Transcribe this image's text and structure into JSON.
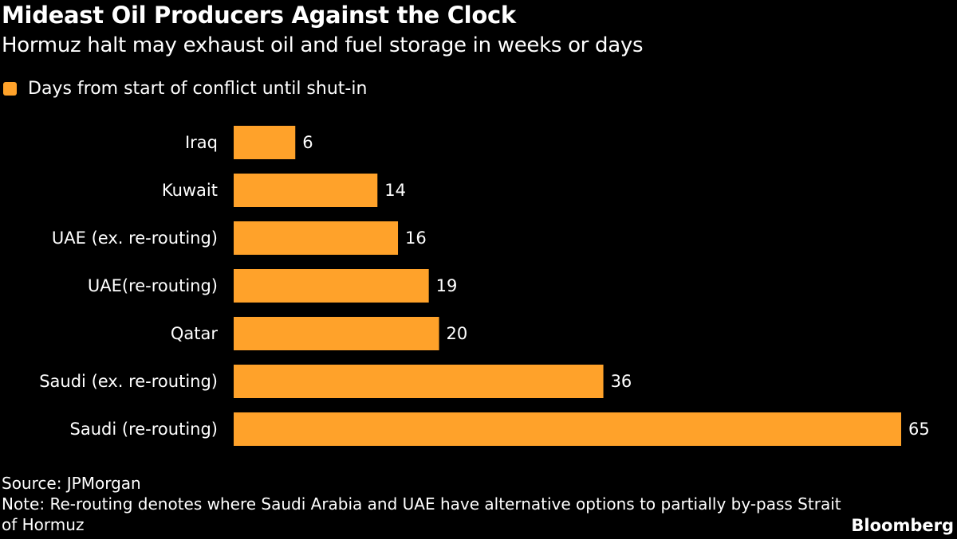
{
  "title": "Mideast Oil Producers Against the Clock",
  "subtitle": "Hormuz halt may exhaust oil and fuel storage in weeks or days",
  "chart_data": {
    "type": "bar",
    "orientation": "horizontal",
    "categories": [
      "Iraq",
      "Kuwait",
      "UAE (ex. re-routing)",
      "UAE(re-routing)",
      "Qatar",
      "Saudi (ex. re-routing)",
      "Saudi (re-routing)"
    ],
    "series": [
      {
        "name": "Days from start of conflict until shut-in",
        "values": [
          6,
          14,
          16,
          19,
          20,
          36,
          65
        ]
      }
    ],
    "xlim": [
      0,
      65
    ],
    "grid": false,
    "legend": "top-left",
    "data_labels": true
  },
  "colors": {
    "bar": "#FFA22A",
    "background": "#000000",
    "text": "#FFFFFF"
  },
  "source": "Source: JPMorgan",
  "note": "Note: Re-routing denotes where Saudi Arabia and UAE have alternative options to partially by-pass Strait of Hormuz",
  "brand": "Bloomberg"
}
